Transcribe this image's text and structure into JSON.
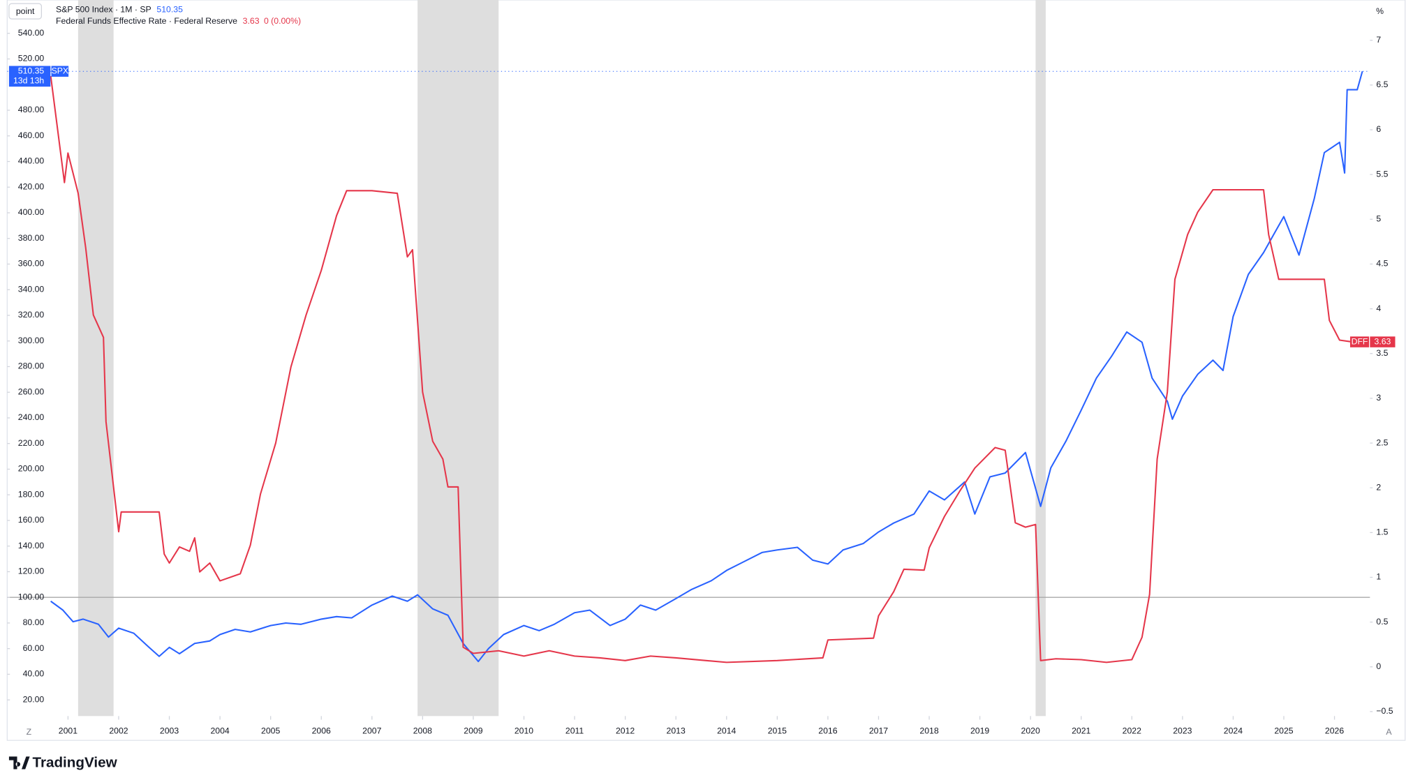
{
  "chart_data": {
    "type": "line",
    "unit_left": "point",
    "unit_right": "%",
    "brand": "TradingView",
    "xlim": [
      1999.8,
      2026.7
    ],
    "xticks": [
      2001,
      2002,
      2003,
      2004,
      2005,
      2006,
      2007,
      2008,
      2009,
      2010,
      2011,
      2012,
      2013,
      2014,
      2015,
      2016,
      2017,
      2018,
      2019,
      2020,
      2021,
      2022,
      2023,
      2024,
      2025,
      2026
    ],
    "ylim": [
      7.4,
      566
    ],
    "yticks": [
      {
        "value": 20,
        "label": "20.00"
      },
      {
        "value": 40,
        "label": "40.00"
      },
      {
        "value": 60,
        "label": "60.00"
      },
      {
        "value": 80,
        "label": "80.00"
      },
      {
        "value": 100,
        "label": "100.00"
      },
      {
        "value": 120,
        "label": "120.00"
      },
      {
        "value": 140,
        "label": "140.00"
      },
      {
        "value": 160,
        "label": "160.00"
      },
      {
        "value": 180,
        "label": "180.00"
      },
      {
        "value": 200,
        "label": "200.00"
      },
      {
        "value": 220,
        "label": "220.00"
      },
      {
        "value": 240,
        "label": "240.00"
      },
      {
        "value": 260,
        "label": "260.00"
      },
      {
        "value": 280,
        "label": "280.00"
      },
      {
        "value": 300,
        "label": "300.00"
      },
      {
        "value": 320,
        "label": "320.00"
      },
      {
        "value": 340,
        "label": "340.00"
      },
      {
        "value": 360,
        "label": "360.00"
      },
      {
        "value": 380,
        "label": "380.00"
      },
      {
        "value": 400,
        "label": "400.00"
      },
      {
        "value": 420,
        "label": "420.00"
      },
      {
        "value": 440,
        "label": "440.00"
      },
      {
        "value": 460,
        "label": "460.00"
      },
      {
        "value": 480,
        "label": "480.00"
      },
      {
        "value": 520,
        "label": "520.00"
      },
      {
        "value": 540,
        "label": "540.00"
      }
    ],
    "y2lim": [
      -0.55,
      7.45
    ],
    "y2ticks": [
      {
        "value": -0.5,
        "label": "−0.5"
      },
      0,
      0.5,
      1,
      1.5,
      2,
      2.5,
      3,
      3.5,
      4,
      4.5,
      5,
      5.5,
      6,
      6.5,
      7
    ],
    "baseline": 100,
    "shaded_ranges": [
      [
        2001.2,
        2001.9
      ],
      [
        2007.9,
        2009.5
      ],
      [
        2020.1,
        2020.3
      ]
    ],
    "series": [
      {
        "name": "S&P 500 Index · 1M · SP",
        "short_name": "SPX",
        "color": "#2962ff",
        "last_value": 510.35,
        "countdown": "13d 13h",
        "x": [
          2000.66,
          2000.9,
          2001.1,
          2001.3,
          2001.6,
          2001.8,
          2002.0,
          2002.3,
          2002.6,
          2002.8,
          2003.0,
          2003.2,
          2003.5,
          2003.8,
          2004.0,
          2004.3,
          2004.6,
          2005.0,
          2005.3,
          2005.6,
          2006.0,
          2006.3,
          2006.6,
          2007.0,
          2007.4,
          2007.7,
          2007.9,
          2008.2,
          2008.5,
          2008.8,
          2009.1,
          2009.3,
          2009.6,
          2010.0,
          2010.3,
          2010.6,
          2011.0,
          2011.3,
          2011.7,
          2012.0,
          2012.3,
          2012.6,
          2013.0,
          2013.3,
          2013.7,
          2014.0,
          2014.3,
          2014.7,
          2015.0,
          2015.4,
          2015.7,
          2016.0,
          2016.3,
          2016.7,
          2017.0,
          2017.3,
          2017.7,
          2018.0,
          2018.3,
          2018.7,
          2018.9,
          2019.2,
          2019.5,
          2019.9,
          2020.2,
          2020.4,
          2020.7,
          2021.0,
          2021.3,
          2021.6,
          2021.9,
          2022.2,
          2022.4,
          2022.7,
          2022.8,
          2023.0,
          2023.3,
          2023.6,
          2023.8,
          2024.0,
          2024.3,
          2024.6,
          2024.8,
          2025.0,
          2025.3,
          2025.6,
          2025.8,
          2026.1,
          2026.2,
          2026.25,
          2026.45,
          2026.55
        ],
        "values": [
          97,
          90,
          81,
          83,
          79,
          69,
          76,
          72,
          61,
          54,
          61,
          56,
          64,
          66,
          71,
          75,
          73,
          78,
          80,
          79,
          83,
          85,
          84,
          94,
          101,
          97,
          102,
          91,
          86,
          64,
          50,
          60,
          71,
          78,
          74,
          79,
          88,
          90,
          78,
          83,
          94,
          90,
          99,
          106,
          113,
          121,
          127,
          135,
          137,
          139,
          129,
          126,
          137,
          142,
          151,
          158,
          165,
          183,
          176,
          190,
          165,
          194,
          197,
          213,
          171,
          201,
          222,
          246,
          271,
          288,
          307,
          299,
          271,
          253,
          239,
          257,
          274,
          285,
          277,
          319,
          352,
          369,
          383,
          397,
          367,
          411,
          447,
          455,
          431,
          496,
          496,
          510.35
        ]
      },
      {
        "name": "Federal Funds Effective Rate · Federal Reserve",
        "short_name": "DFF",
        "color": "#e5364a",
        "axis": "y2",
        "last_value": 3.63,
        "change": "0 (0.00%)",
        "x": [
          2000.66,
          2000.93,
          2001.0,
          2001.2,
          2001.35,
          2001.5,
          2001.7,
          2001.75,
          2002.0,
          2002.05,
          2002.5,
          2002.8,
          2002.9,
          2003.0,
          2003.2,
          2003.4,
          2003.5,
          2003.6,
          2003.8,
          2004.0,
          2004.4,
          2004.6,
          2004.8,
          2005.1,
          2005.4,
          2005.7,
          2006.0,
          2006.3,
          2006.5,
          2007.0,
          2007.5,
          2007.7,
          2007.8,
          2008.0,
          2008.2,
          2008.4,
          2008.5,
          2008.7,
          2008.8,
          2009.0,
          2009.5,
          2010.0,
          2010.5,
          2011.0,
          2011.5,
          2012.0,
          2012.5,
          2013.0,
          2014.0,
          2015.0,
          2015.9,
          2016.0,
          2016.9,
          2017.0,
          2017.3,
          2017.5,
          2017.9,
          2018.0,
          2018.3,
          2018.6,
          2018.9,
          2019.3,
          2019.5,
          2019.7,
          2019.9,
          2020.1,
          2020.2,
          2020.5,
          2021.0,
          2021.5,
          2022.0,
          2022.2,
          2022.35,
          2022.5,
          2022.7,
          2022.85,
          2023.1,
          2023.3,
          2023.6,
          2024.6,
          2024.7,
          2024.9,
          2025.8,
          2025.9,
          2026.1,
          2026.35
        ],
        "values": [
          6.6,
          5.41,
          5.74,
          5.29,
          4.68,
          3.93,
          3.68,
          2.74,
          1.51,
          1.73,
          1.73,
          1.73,
          1.26,
          1.16,
          1.34,
          1.29,
          1.44,
          1.06,
          1.16,
          0.96,
          1.04,
          1.36,
          1.93,
          2.5,
          3.35,
          3.93,
          4.43,
          5.04,
          5.32,
          5.32,
          5.29,
          4.58,
          4.66,
          3.07,
          2.52,
          2.32,
          2.01,
          2.01,
          0.22,
          0.15,
          0.18,
          0.12,
          0.18,
          0.12,
          0.1,
          0.07,
          0.12,
          0.1,
          0.05,
          0.07,
          0.1,
          0.3,
          0.32,
          0.57,
          0.84,
          1.09,
          1.08,
          1.33,
          1.68,
          1.96,
          2.22,
          2.45,
          2.42,
          1.61,
          1.56,
          1.59,
          0.07,
          0.09,
          0.08,
          0.05,
          0.08,
          0.33,
          0.81,
          2.32,
          3.07,
          4.33,
          4.83,
          5.08,
          5.33,
          5.33,
          4.83,
          4.33,
          4.33,
          3.87,
          3.65,
          3.63
        ]
      }
    ]
  }
}
